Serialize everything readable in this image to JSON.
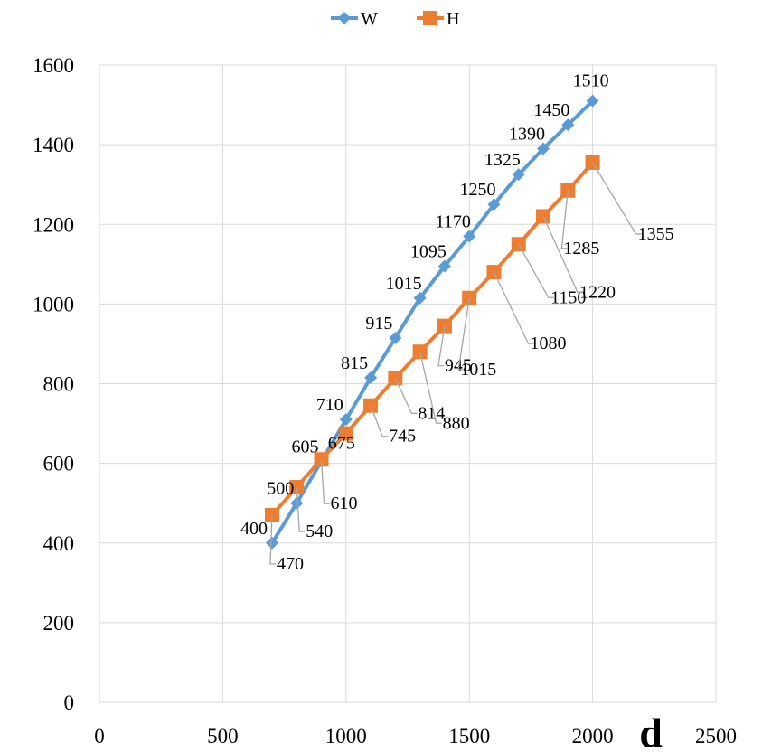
{
  "chart_data": {
    "type": "scatter",
    "title": "",
    "xlabel": "d",
    "ylabel": "",
    "xlim": [
      0,
      2500
    ],
    "ylim": [
      0,
      1600
    ],
    "xticks": [
      "0",
      "500",
      "1000",
      "1500",
      "2000",
      "2500"
    ],
    "yticks": [
      "0",
      "200",
      "400",
      "600",
      "800",
      "1000",
      "1200",
      "1400",
      "1600"
    ],
    "grid": true,
    "legend_position": "top",
    "series": [
      {
        "name": "W",
        "color": "#5B9BD5",
        "marker": "diamond",
        "x": [
          700,
          800,
          900,
          1000,
          1100,
          1200,
          1300,
          1400,
          1500,
          1600,
          1700,
          1800,
          1900,
          2000
        ],
        "y": [
          400,
          500,
          605,
          710,
          815,
          915,
          1015,
          1095,
          1170,
          1250,
          1325,
          1390,
          1450,
          1510
        ],
        "labels": [
          "400",
          "500",
          "605",
          "710",
          "815",
          "915",
          "1015",
          "1095",
          "1170",
          "1250",
          "1325",
          "1390",
          "1450",
          "1510"
        ]
      },
      {
        "name": "H",
        "color": "#ED7D31",
        "marker": "square",
        "x": [
          700,
          800,
          900,
          1000,
          1100,
          1200,
          1300,
          1400,
          1500,
          1600,
          1700,
          1800,
          1900,
          2000
        ],
        "y": [
          470,
          540,
          610,
          675,
          745,
          814,
          880,
          945,
          1015,
          1080,
          1150,
          1220,
          1285,
          1355
        ],
        "labels": [
          "470",
          "540",
          "610",
          "675",
          "745",
          "814",
          "880",
          "945",
          "1015",
          "1080",
          "1150",
          "1220",
          "1285",
          "1355"
        ]
      }
    ]
  }
}
